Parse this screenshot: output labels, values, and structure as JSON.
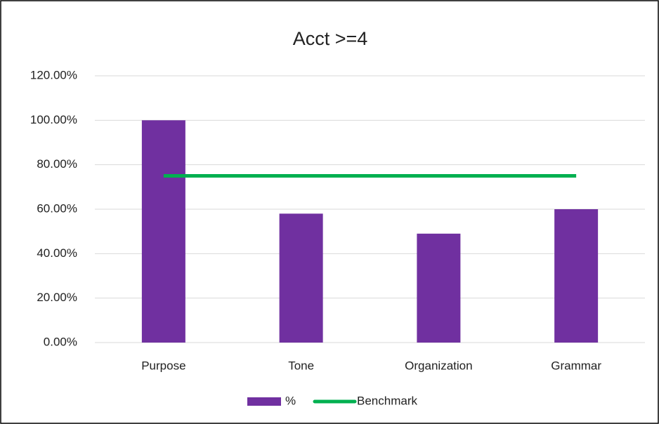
{
  "chart_data": {
    "type": "bar",
    "title": "Acct >=4",
    "categories": [
      "Purpose",
      "Tone",
      "Organization",
      "Grammar"
    ],
    "series": [
      {
        "name": "%",
        "type": "bar",
        "color": "#7030a0",
        "values": [
          100,
          58,
          49,
          60
        ]
      },
      {
        "name": "Benchmark",
        "type": "line",
        "color": "#00b050",
        "values": [
          75,
          75,
          75,
          75
        ]
      }
    ],
    "ylim": [
      0,
      120
    ],
    "yticks": [
      {
        "value": 0,
        "label": "0.00%"
      },
      {
        "value": 20,
        "label": "20.00%"
      },
      {
        "value": 40,
        "label": "40.00%"
      },
      {
        "value": 60,
        "label": "60.00%"
      },
      {
        "value": 80,
        "label": "80.00%"
      },
      {
        "value": 100,
        "label": "100.00%"
      },
      {
        "value": 120,
        "label": "120.00%"
      }
    ],
    "grid": true,
    "legend": "bottom"
  }
}
